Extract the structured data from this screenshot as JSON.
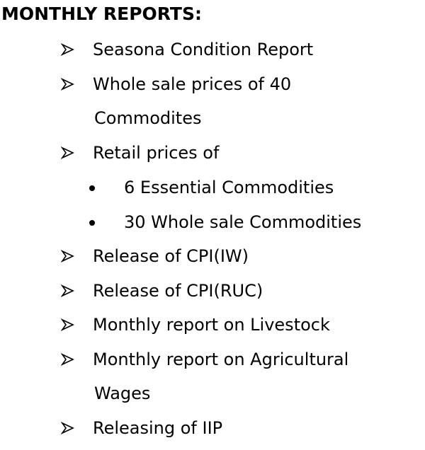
{
  "heading": "MONTHLY REPORTS:",
  "items": [
    {
      "text": "Seasona Condition Report"
    },
    {
      "text": "Whole sale prices of 40",
      "continuation": "Commodites"
    },
    {
      "text": "Retail prices of",
      "subitems": [
        "6 Essential Commodities",
        "30 Whole sale Commodities"
      ]
    },
    {
      "text": "Release of CPI(IW)"
    },
    {
      "text": "Release of CPI(RUC)"
    },
    {
      "text": "Monthly report on Livestock"
    },
    {
      "text": "Monthly report on Agricultural",
      "continuation": "Wages"
    },
    {
      "text": "Releasing of IIP"
    }
  ]
}
